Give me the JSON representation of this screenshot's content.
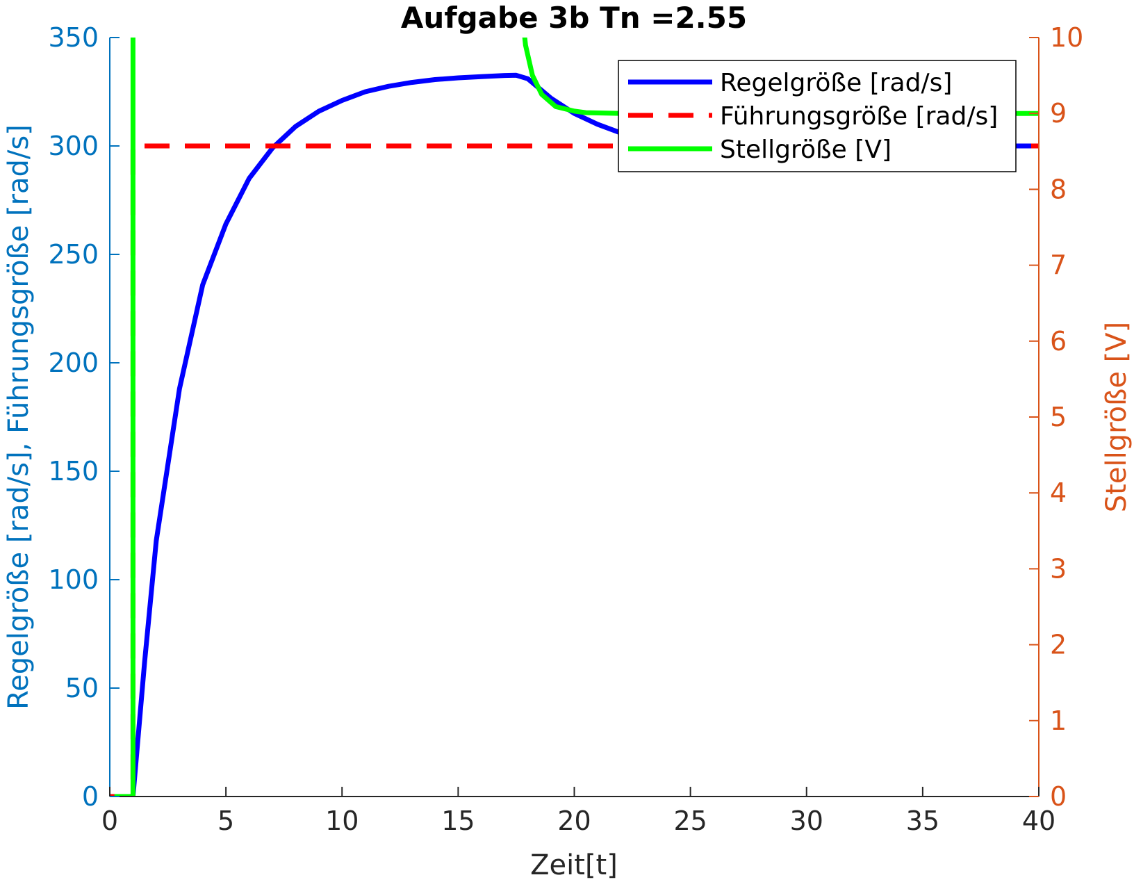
{
  "chart_data": {
    "type": "line",
    "title": "Aufgabe 3b Tn =2.55",
    "xlabel": "Zeit[t]",
    "ylabel_left": "Regelgröße [rad/s], Führungsgröße [rad/s]",
    "ylabel_right": "Stellgröße [V]",
    "xlim": [
      0,
      40
    ],
    "ylim_left": [
      0,
      350
    ],
    "ylim_right": [
      0,
      10
    ],
    "xticks": [
      "0",
      "5",
      "10",
      "15",
      "20",
      "25",
      "30",
      "35",
      "40"
    ],
    "yticks_left": [
      "0",
      "50",
      "100",
      "150",
      "200",
      "250",
      "300",
      "350"
    ],
    "yticks_right": [
      "0",
      "1",
      "2",
      "3",
      "4",
      "5",
      "6",
      "7",
      "8",
      "9",
      "10"
    ],
    "grid": false,
    "legend_position": "top-right",
    "left_axis_color": "#0072BD",
    "right_axis_color": "#D95319",
    "series": [
      {
        "name": "Regelgröße [rad/s]",
        "axis": "left",
        "color": "#0000FF",
        "style": "solid",
        "x": [
          0,
          1,
          1.5,
          2,
          3,
          4,
          5,
          6,
          7,
          8,
          9,
          10,
          11,
          12,
          13,
          14,
          15,
          16,
          17,
          17.5,
          18,
          19,
          20,
          21,
          22,
          23,
          24,
          25,
          26,
          28,
          30,
          32,
          34,
          36,
          38,
          40
        ],
        "y": [
          0,
          0,
          62,
          118,
          188,
          236,
          264,
          285,
          299,
          309,
          316,
          321,
          325,
          327.5,
          329.3,
          330.6,
          331.4,
          332,
          332.5,
          332.6,
          331,
          322,
          315,
          310,
          306,
          303.5,
          302,
          301,
          300.5,
          300.2,
          300,
          300,
          300,
          300,
          300,
          300
        ]
      },
      {
        "name": "Führungsgröße [rad/s]",
        "axis": "left",
        "color": "#FF0000",
        "style": "dashed",
        "x": [
          0,
          1,
          1,
          40
        ],
        "y": [
          0,
          0,
          300,
          300
        ]
      },
      {
        "name": "Stellgröße [V]",
        "axis": "right",
        "color": "#00FF00",
        "style": "solid",
        "x": [
          0.2,
          1,
          1,
          1,
          17.7,
          17.9,
          18.2,
          18.6,
          19.2,
          20,
          20.5,
          22,
          26,
          30,
          35,
          40
        ],
        "y": [
          0,
          0,
          0,
          10.5,
          10.5,
          9.9,
          9.5,
          9.25,
          9.09,
          9.03,
          9.01,
          9.0,
          9.0,
          9.0,
          9.0,
          9.0
        ]
      }
    ]
  }
}
